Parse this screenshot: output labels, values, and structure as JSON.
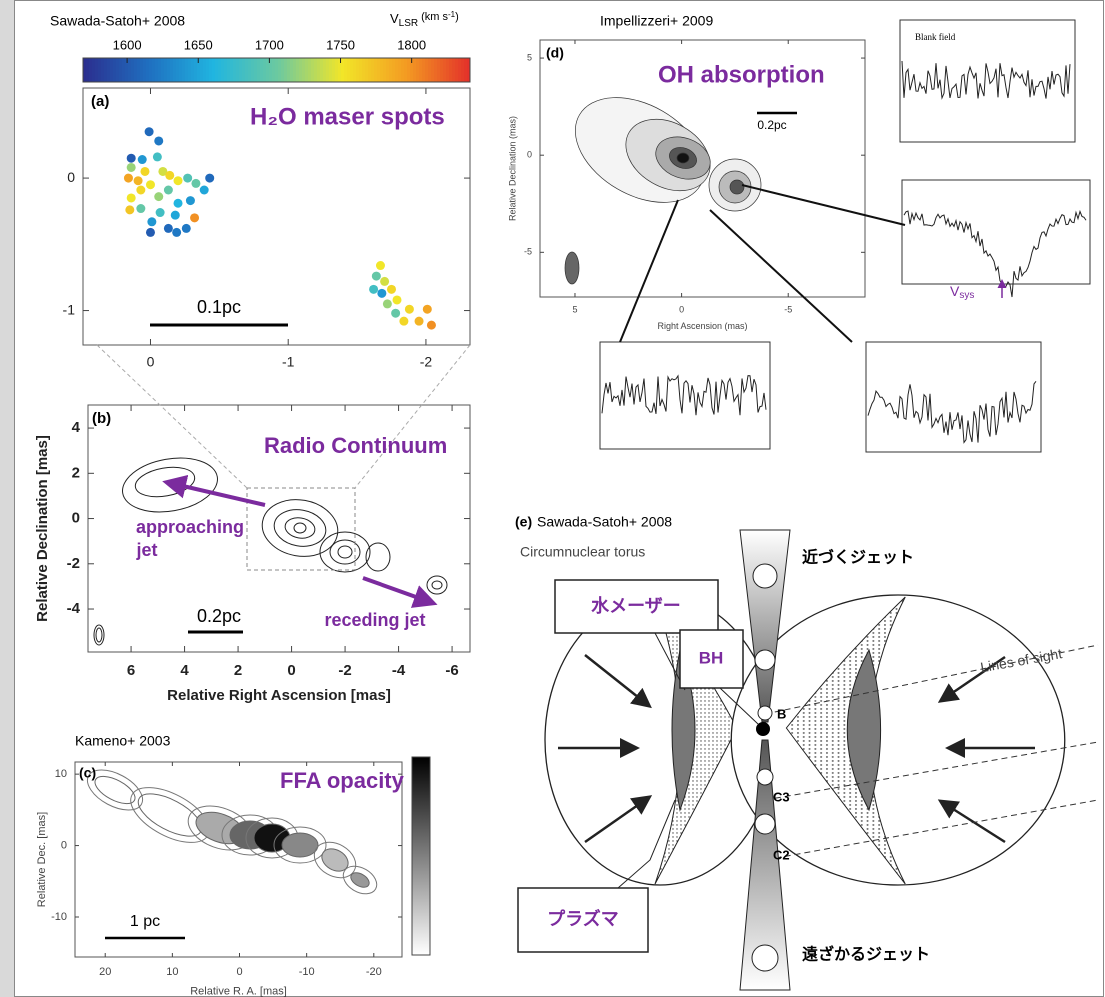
{
  "chart_data": [
    {
      "type": "scatter",
      "panel": "(a)",
      "credit": "Sawada-Satoh+ 2008",
      "title": "H₂O maser spots",
      "colorbar_label": {
        "symbol": "V",
        "subscript": "LSR",
        "unit": "(km s",
        "exponent": "-1",
        "close": ")"
      },
      "colormap": [
        "#2b2f8f",
        "#1f6fc0",
        "#20b5e0",
        "#6cc9a0",
        "#f2e628",
        "#f39a22",
        "#e32d2a"
      ],
      "clim": [
        1569,
        1841
      ],
      "cticks": [
        1600,
        1650,
        1700,
        1750,
        1800
      ],
      "x": [
        0.01,
        -0.06,
        0.14,
        0.06,
        -0.05,
        0.14,
        0.16,
        0.09,
        0.04,
        0,
        -0.09,
        -0.14,
        -0.2,
        -0.27,
        -0.33,
        -0.43,
        -0.39,
        -0.29,
        -0.2,
        -0.13,
        -0.06,
        0.07,
        0.14,
        0.07,
        -0.07,
        -0.18,
        -0.32,
        -0.26,
        -0.13,
        -0.01,
        0,
        -0.19,
        0.15,
        -1.67,
        -1.64,
        -1.7,
        -1.62,
        -1.68,
        -1.75,
        -1.72,
        -1.79,
        -1.88,
        -2.01,
        -1.95,
        -2.04,
        -1.84,
        -1.78
      ],
      "y": [
        0.35,
        0.28,
        0.15,
        0.14,
        0.16,
        0.08,
        0,
        -0.02,
        0.05,
        -0.05,
        0.05,
        0.02,
        -0.02,
        0,
        -0.04,
        0,
        -0.09,
        -0.17,
        -0.19,
        -0.09,
        -0.14,
        -0.09,
        -0.15,
        -0.23,
        -0.26,
        -0.28,
        -0.3,
        -0.38,
        -0.38,
        -0.33,
        -0.41,
        -0.41,
        -0.24,
        -0.66,
        -0.74,
        -0.78,
        -0.84,
        -0.87,
        -0.84,
        -0.95,
        -0.92,
        -0.99,
        -0.99,
        -1.08,
        -1.11,
        -1.08,
        -1.02
      ],
      "c": [
        1610,
        1620,
        1600,
        1640,
        1680,
        1720,
        1790,
        1780,
        1760,
        1750,
        1740,
        1760,
        1750,
        1690,
        1700,
        1610,
        1650,
        1640,
        1660,
        1700,
        1720,
        1760,
        1750,
        1700,
        1680,
        1650,
        1800,
        1620,
        1610,
        1640,
        1600,
        1620,
        1770,
        1750,
        1700,
        1740,
        1680,
        1640,
        1760,
        1720,
        1750,
        1760,
        1790,
        1780,
        1800,
        1760,
        1700
      ],
      "xlim": [
        0.49,
        -2.32
      ],
      "ylim": [
        -1.26,
        0.68
      ],
      "xticks": [
        0,
        -1,
        -2
      ],
      "yticks": [
        0,
        -1
      ],
      "scale_bar": "0.1pc"
    },
    {
      "type": "contour",
      "panel": "(b)",
      "title": "Radio Continuum",
      "xlabel": "Relative Right Ascension [mas]",
      "ylabel": "Relative Declination [mas]",
      "xlim": [
        7.61,
        -6.67
      ],
      "ylim": [
        -5.9,
        5.02
      ],
      "xticks": [
        6,
        4,
        2,
        0,
        -2,
        -4,
        -6
      ],
      "yticks": [
        4,
        2,
        0,
        -2,
        -4
      ],
      "approaching_jet": [
        "approaching",
        "jet"
      ],
      "receding_jet": "receding jet",
      "scale_bar": "0.2pc"
    },
    {
      "type": "contour",
      "panel": "(c)",
      "credit": "Kameno+ 2003",
      "title": "FFA opacity",
      "xlabel": "Relative R. A. [mas]",
      "ylabel": "Relative Dec. [mas]",
      "xlim": [
        24.5,
        -24.2
      ],
      "ylim": [
        -15.6,
        11.7
      ],
      "xticks": [
        20,
        10,
        0,
        -10,
        -20
      ],
      "yticks": [
        10,
        0,
        -10
      ],
      "scale_bar": "1 pc"
    },
    {
      "type": "contour",
      "panel": "(d)",
      "credit": "Impellizzeri+ 2009",
      "title": "OH absorption",
      "xlabel": "Right Ascension (mas)",
      "ylabel": "Relative Declination (mas)",
      "xlim": [
        6.64,
        -8.6
      ],
      "ylim": [
        -7.3,
        5.93
      ],
      "xticks": [
        5,
        0,
        -5
      ],
      "yticks": [
        5,
        0,
        -5
      ],
      "scale_bar": "0.2pc",
      "inset_label": "Blank field",
      "vsys": {
        "symbol": "V",
        "subscript": "sys"
      }
    }
  ],
  "diagram": {
    "panel": "(e)",
    "credit": "Sawada-Satoh+ 2008",
    "torus": "Circumnuclear torus",
    "approaching_jet": "近づくジェット",
    "receding_jet": "遠ざかるジェット",
    "water_maser": "水メーザー",
    "bh": "BH",
    "plasma": "プラズマ",
    "lines_of_sight": "Lines of sight",
    "components": [
      "B",
      "C3",
      "C2"
    ]
  }
}
